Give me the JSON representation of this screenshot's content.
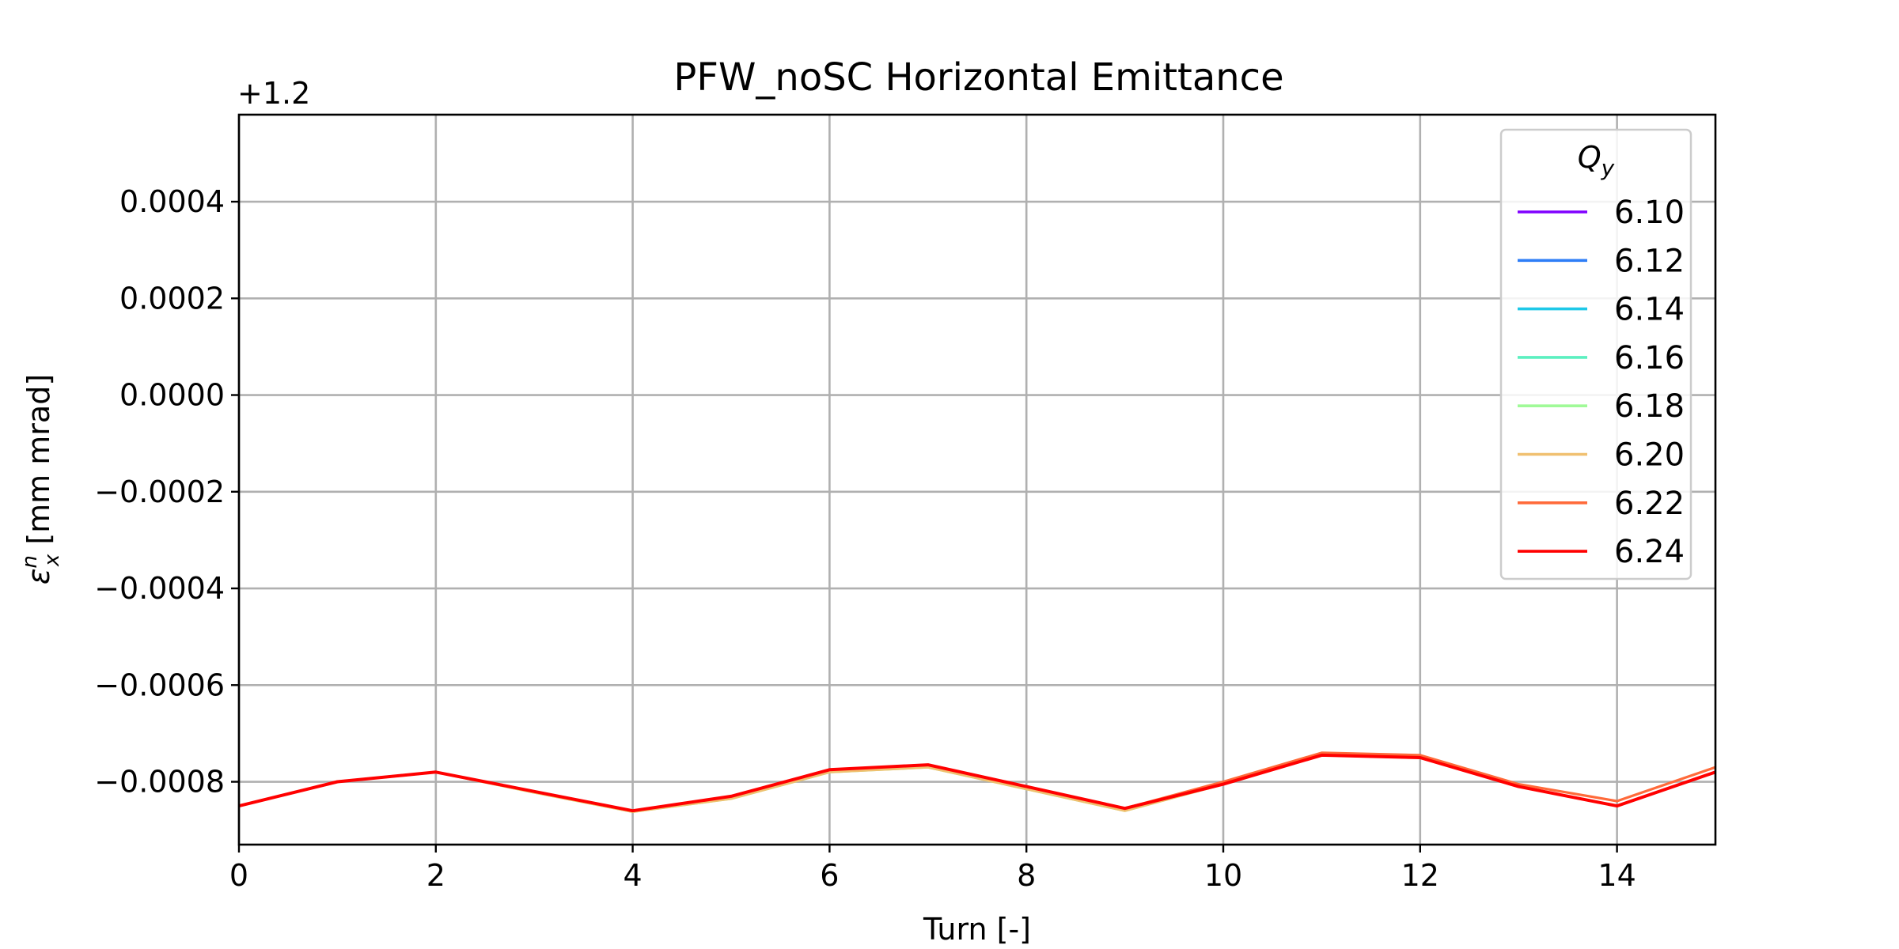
{
  "chart_data": {
    "type": "line",
    "title": "PFW_noSC Horizontal Emittance",
    "xlabel": "Turn [-]",
    "ylabel": "ε_x^n [mm mrad]",
    "ylabel_parts": {
      "symbol": "ε",
      "sub": "x",
      "sup": "n",
      "unit": " [mm mrad]"
    },
    "y_offset_label": "+1.2",
    "xlim": [
      0,
      15
    ],
    "ylim": [
      -0.00093,
      0.00058
    ],
    "xticks": [
      0,
      2,
      4,
      6,
      8,
      10,
      12,
      14
    ],
    "yticks": [
      0.0004,
      0.0002,
      0.0,
      -0.0002,
      -0.0004,
      -0.0006,
      -0.0008
    ],
    "ytick_labels": [
      "0.0004",
      "0.0002",
      "0.0000",
      "−0.0002",
      "−0.0004",
      "−0.0006",
      "−0.0008"
    ],
    "grid": true,
    "legend": {
      "title": "Q",
      "title_sub": "y",
      "placement": "top-right"
    },
    "x": [
      0,
      1,
      2,
      3,
      4,
      5,
      6,
      7,
      8,
      9,
      10,
      11,
      12,
      13,
      14,
      15
    ],
    "series": [
      {
        "name": "6.10",
        "color": "#8000ff",
        "values": [
          -0.00085,
          -0.0008,
          -0.00078,
          -0.00082,
          -0.00086,
          -0.00083,
          -0.000775,
          -0.000765,
          -0.00081,
          -0.000855,
          -0.000805,
          -0.000745,
          -0.00075,
          -0.00081,
          -0.00085,
          -0.00078
        ]
      },
      {
        "name": "6.12",
        "color": "#2e7ef7",
        "values": [
          -0.00085,
          -0.0008,
          -0.00078,
          -0.00082,
          -0.00086,
          -0.00083,
          -0.000775,
          -0.000765,
          -0.00081,
          -0.000855,
          -0.000805,
          -0.000745,
          -0.00075,
          -0.00081,
          -0.00085,
          -0.00078
        ]
      },
      {
        "name": "6.14",
        "color": "#1ec8e8",
        "values": [
          -0.00085,
          -0.0008,
          -0.00078,
          -0.00082,
          -0.00086,
          -0.00083,
          -0.000775,
          -0.000765,
          -0.00081,
          -0.000855,
          -0.000805,
          -0.000745,
          -0.00075,
          -0.00081,
          -0.00085,
          -0.00078
        ]
      },
      {
        "name": "6.16",
        "color": "#5cf0c0",
        "values": [
          -0.00085,
          -0.0008,
          -0.00078,
          -0.00082,
          -0.00086,
          -0.00083,
          -0.000775,
          -0.000765,
          -0.00081,
          -0.000855,
          -0.000805,
          -0.000745,
          -0.00075,
          -0.00081,
          -0.00085,
          -0.00078
        ]
      },
      {
        "name": "6.18",
        "color": "#a0fa98",
        "values": [
          -0.00085,
          -0.0008,
          -0.00078,
          -0.000822,
          -0.000862,
          -0.000835,
          -0.00078,
          -0.00077,
          -0.000815,
          -0.00086,
          -0.000805,
          -0.000745,
          -0.00075,
          -0.00081,
          -0.00085,
          -0.00078
        ]
      },
      {
        "name": "6.20",
        "color": "#f0c070",
        "values": [
          -0.00085,
          -0.0008,
          -0.00078,
          -0.000822,
          -0.000862,
          -0.000835,
          -0.00078,
          -0.00077,
          -0.000815,
          -0.00086,
          -0.000805,
          -0.000745,
          -0.00075,
          -0.00081,
          -0.00085,
          -0.00078
        ]
      },
      {
        "name": "6.22",
        "color": "#ff6a3a",
        "values": [
          -0.00085,
          -0.0008,
          -0.00078,
          -0.00082,
          -0.00086,
          -0.00083,
          -0.000775,
          -0.000765,
          -0.00081,
          -0.000855,
          -0.0008,
          -0.00074,
          -0.000745,
          -0.000805,
          -0.00084,
          -0.00077
        ]
      },
      {
        "name": "6.24",
        "color": "#ff0000",
        "values": [
          -0.00085,
          -0.0008,
          -0.00078,
          -0.00082,
          -0.00086,
          -0.00083,
          -0.000775,
          -0.000765,
          -0.00081,
          -0.000855,
          -0.000805,
          -0.000745,
          -0.00075,
          -0.00081,
          -0.00085,
          -0.00078
        ]
      }
    ]
  }
}
